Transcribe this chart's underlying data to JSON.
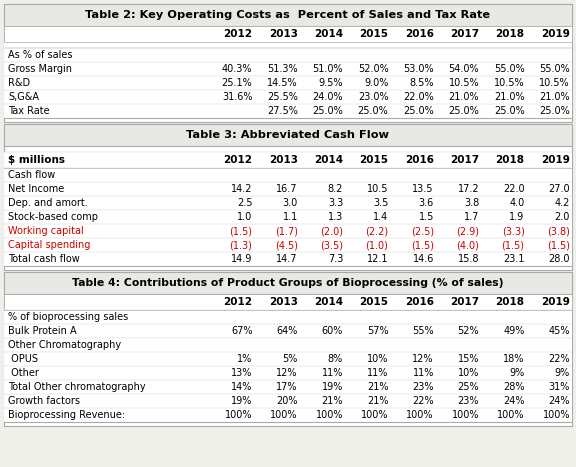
{
  "bg_color": "#f0f0eb",
  "white": "#ffffff",
  "border_color": "#aaaaaa",
  "fig_width": 5.76,
  "fig_height": 4.67,
  "table2": {
    "title": "Table 2: Key Operating Costs as  Percent of Sales and Tax Rate",
    "title_fs": 8.2,
    "years": [
      "2012",
      "2013",
      "2014",
      "2015",
      "2016",
      "2017",
      "2018",
      "2019"
    ],
    "year_fs": 7.5,
    "rows": [
      {
        "label": "As % of sales",
        "values": [
          "",
          "",
          "",
          "",
          "",
          "",
          "",
          ""
        ],
        "color": "black"
      },
      {
        "label": "Gross Margin",
        "values": [
          "40.3%",
          "51.3%",
          "51.0%",
          "52.0%",
          "53.0%",
          "54.0%",
          "55.0%",
          "55.0%"
        ],
        "color": "black"
      },
      {
        "label": "R&D",
        "values": [
          "25.1%",
          "14.5%",
          "9.5%",
          "9.0%",
          "8.5%",
          "10.5%",
          "10.5%",
          "10.5%"
        ],
        "color": "black"
      },
      {
        "label": "S,G&A",
        "values": [
          "31.6%",
          "25.5%",
          "24.0%",
          "23.0%",
          "22.0%",
          "21.0%",
          "21.0%",
          "21.0%"
        ],
        "color": "black"
      },
      {
        "label": "Tax Rate",
        "values": [
          "",
          "27.5%",
          "25.0%",
          "25.0%",
          "25.0%",
          "25.0%",
          "25.0%",
          "25.0%"
        ],
        "color": "black"
      }
    ],
    "cell_fs": 7.0
  },
  "table3": {
    "title": "Table 3: Abbreviated Cash Flow",
    "title_fs": 8.2,
    "header_label": "$ millions",
    "years": [
      "2012",
      "2013",
      "2014",
      "2015",
      "2016",
      "2017",
      "2018",
      "2019"
    ],
    "year_fs": 7.5,
    "rows": [
      {
        "label": "Cash flow",
        "values": [
          "",
          "",
          "",
          "",
          "",
          "",
          "",
          ""
        ],
        "color": "black"
      },
      {
        "label": "Net Income",
        "values": [
          "14.2",
          "16.7",
          "8.2",
          "10.5",
          "13.5",
          "17.2",
          "22.0",
          "27.0"
        ],
        "color": "black"
      },
      {
        "label": "Dep. and amort.",
        "values": [
          "2.5",
          "3.0",
          "3.3",
          "3.5",
          "3.6",
          "3.8",
          "4.0",
          "4.2"
        ],
        "color": "black"
      },
      {
        "label": "Stock-based comp",
        "values": [
          "1.0",
          "1.1",
          "1.3",
          "1.4",
          "1.5",
          "1.7",
          "1.9",
          "2.0"
        ],
        "color": "black"
      },
      {
        "label": "Working capital",
        "values": [
          "(1.5)",
          "(1.7)",
          "(2.0)",
          "(2.2)",
          "(2.5)",
          "(2.9)",
          "(3.3)",
          "(3.8)"
        ],
        "color": "#cc0000"
      },
      {
        "label": "Capital spending",
        "values": [
          "(1.3)",
          "(4.5)",
          "(3.5)",
          "(1.0)",
          "(1.5)",
          "(4.0)",
          "(1.5)",
          "(1.5)"
        ],
        "color": "#cc0000"
      },
      {
        "label": "Total cash flow",
        "values": [
          "14.9",
          "14.7",
          "7.3",
          "12.1",
          "14.6",
          "15.8",
          "23.1",
          "28.0"
        ],
        "color": "black"
      }
    ],
    "cell_fs": 7.0
  },
  "table4": {
    "title": "Table 4: Contributions of Product Groups of Bioprocessing (% of sales)",
    "title_fs": 7.8,
    "years": [
      "2012",
      "2013",
      "2014",
      "2015",
      "2016",
      "2017",
      "2018",
      "2019"
    ],
    "year_fs": 7.5,
    "rows": [
      {
        "label": "% of bioprocessing sales",
        "values": [
          "",
          "",
          "",
          "",
          "",
          "",
          "",
          ""
        ],
        "color": "black"
      },
      {
        "label": "Bulk Protein A",
        "values": [
          "67%",
          "64%",
          "60%",
          "57%",
          "55%",
          "52%",
          "49%",
          "45%"
        ],
        "color": "black"
      },
      {
        "label": "Other Chromatography",
        "values": [
          "",
          "",
          "",
          "",
          "",
          "",
          "",
          ""
        ],
        "color": "black"
      },
      {
        "label": " OPUS",
        "values": [
          "1%",
          "5%",
          "8%",
          "10%",
          "12%",
          "15%",
          "18%",
          "22%"
        ],
        "color": "black"
      },
      {
        "label": " Other",
        "values": [
          "13%",
          "12%",
          "11%",
          "11%",
          "11%",
          "10%",
          "9%",
          "9%"
        ],
        "color": "black"
      },
      {
        "label": "Total Other chromatography",
        "values": [
          "14%",
          "17%",
          "19%",
          "21%",
          "23%",
          "25%",
          "28%",
          "31%"
        ],
        "color": "black"
      },
      {
        "label": "Growth factors",
        "values": [
          "19%",
          "20%",
          "21%",
          "21%",
          "22%",
          "23%",
          "24%",
          "24%"
        ],
        "color": "black"
      },
      {
        "label": "Bioprocessing Revenue:",
        "values": [
          "100%",
          "100%",
          "100%",
          "100%",
          "100%",
          "100%",
          "100%",
          "100%"
        ],
        "color": "black"
      }
    ],
    "cell_fs": 7.0
  }
}
